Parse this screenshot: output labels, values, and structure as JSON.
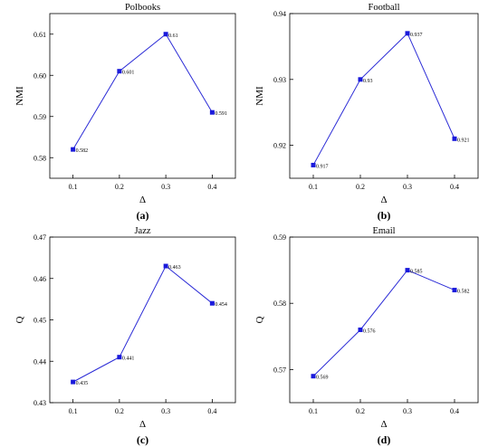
{
  "colors": {
    "line": "#2b2bd6",
    "marker": "#1a1adb",
    "axis": "#000000"
  },
  "chart_data": [
    {
      "type": "line",
      "panel_label": "(a)",
      "title": "Polbooks",
      "xlabel": "Δ",
      "ylabel": "NMI",
      "x": [
        0.1,
        0.2,
        0.3,
        0.4
      ],
      "xlim": [
        0.05,
        0.45
      ],
      "xticks": [
        "0.1",
        "0.2",
        "0.3",
        "0.4"
      ],
      "ylim": [
        0.575,
        0.615
      ],
      "yticks": [
        0.58,
        0.59,
        0.6,
        0.61
      ],
      "ytick_labels": [
        "0.58",
        "0.59",
        "0.60",
        "0.61"
      ],
      "series": [
        {
          "values": [
            0.582,
            0.601,
            0.61,
            0.591
          ],
          "labels": [
            "0.582",
            "0.601",
            "0.61",
            "0.591"
          ]
        }
      ],
      "grid": false
    },
    {
      "type": "line",
      "panel_label": "(b)",
      "title": "Football",
      "xlabel": "Δ",
      "ylabel": "NMI",
      "x": [
        0.1,
        0.2,
        0.3,
        0.4
      ],
      "xlim": [
        0.05,
        0.45
      ],
      "xticks": [
        "0.1",
        "0.2",
        "0.3",
        "0.4"
      ],
      "ylim": [
        0.915,
        0.94
      ],
      "yticks": [
        0.92,
        0.93,
        0.94
      ],
      "ytick_labels": [
        "0.92",
        "0.93",
        "0.94"
      ],
      "series": [
        {
          "values": [
            0.917,
            0.93,
            0.937,
            0.921
          ],
          "labels": [
            "0.917",
            "0.93",
            "0.937",
            "0.921"
          ]
        }
      ],
      "grid": false
    },
    {
      "type": "line",
      "panel_label": "(c)",
      "title": "Jazz",
      "xlabel": "Δ",
      "ylabel": "Q",
      "x": [
        0.1,
        0.2,
        0.3,
        0.4
      ],
      "xlim": [
        0.05,
        0.45
      ],
      "xticks": [
        "0.1",
        "0.2",
        "0.3",
        "0.4"
      ],
      "ylim": [
        0.43,
        0.47
      ],
      "yticks": [
        0.43,
        0.44,
        0.45,
        0.46,
        0.47
      ],
      "ytick_labels": [
        "0.43",
        "0.44",
        "0.45",
        "0.46",
        "0.47"
      ],
      "series": [
        {
          "values": [
            0.435,
            0.441,
            0.463,
            0.454
          ],
          "labels": [
            "0.435",
            "0.441",
            "0.463",
            "0.454"
          ]
        }
      ],
      "grid": false
    },
    {
      "type": "line",
      "panel_label": "(d)",
      "title": "Email",
      "xlabel": "Δ",
      "ylabel": "Q",
      "x": [
        0.1,
        0.2,
        0.3,
        0.4
      ],
      "xlim": [
        0.05,
        0.45
      ],
      "xticks": [
        "0.1",
        "0.2",
        "0.3",
        "0.4"
      ],
      "ylim": [
        0.565,
        0.59
      ],
      "yticks": [
        0.57,
        0.58,
        0.59
      ],
      "ytick_labels": [
        "0.57",
        "0.58",
        "0.59"
      ],
      "series": [
        {
          "values": [
            0.569,
            0.576,
            0.585,
            0.582
          ],
          "labels": [
            "0.569",
            "0.576",
            "0.585",
            "0.582"
          ]
        }
      ],
      "grid": false
    }
  ]
}
